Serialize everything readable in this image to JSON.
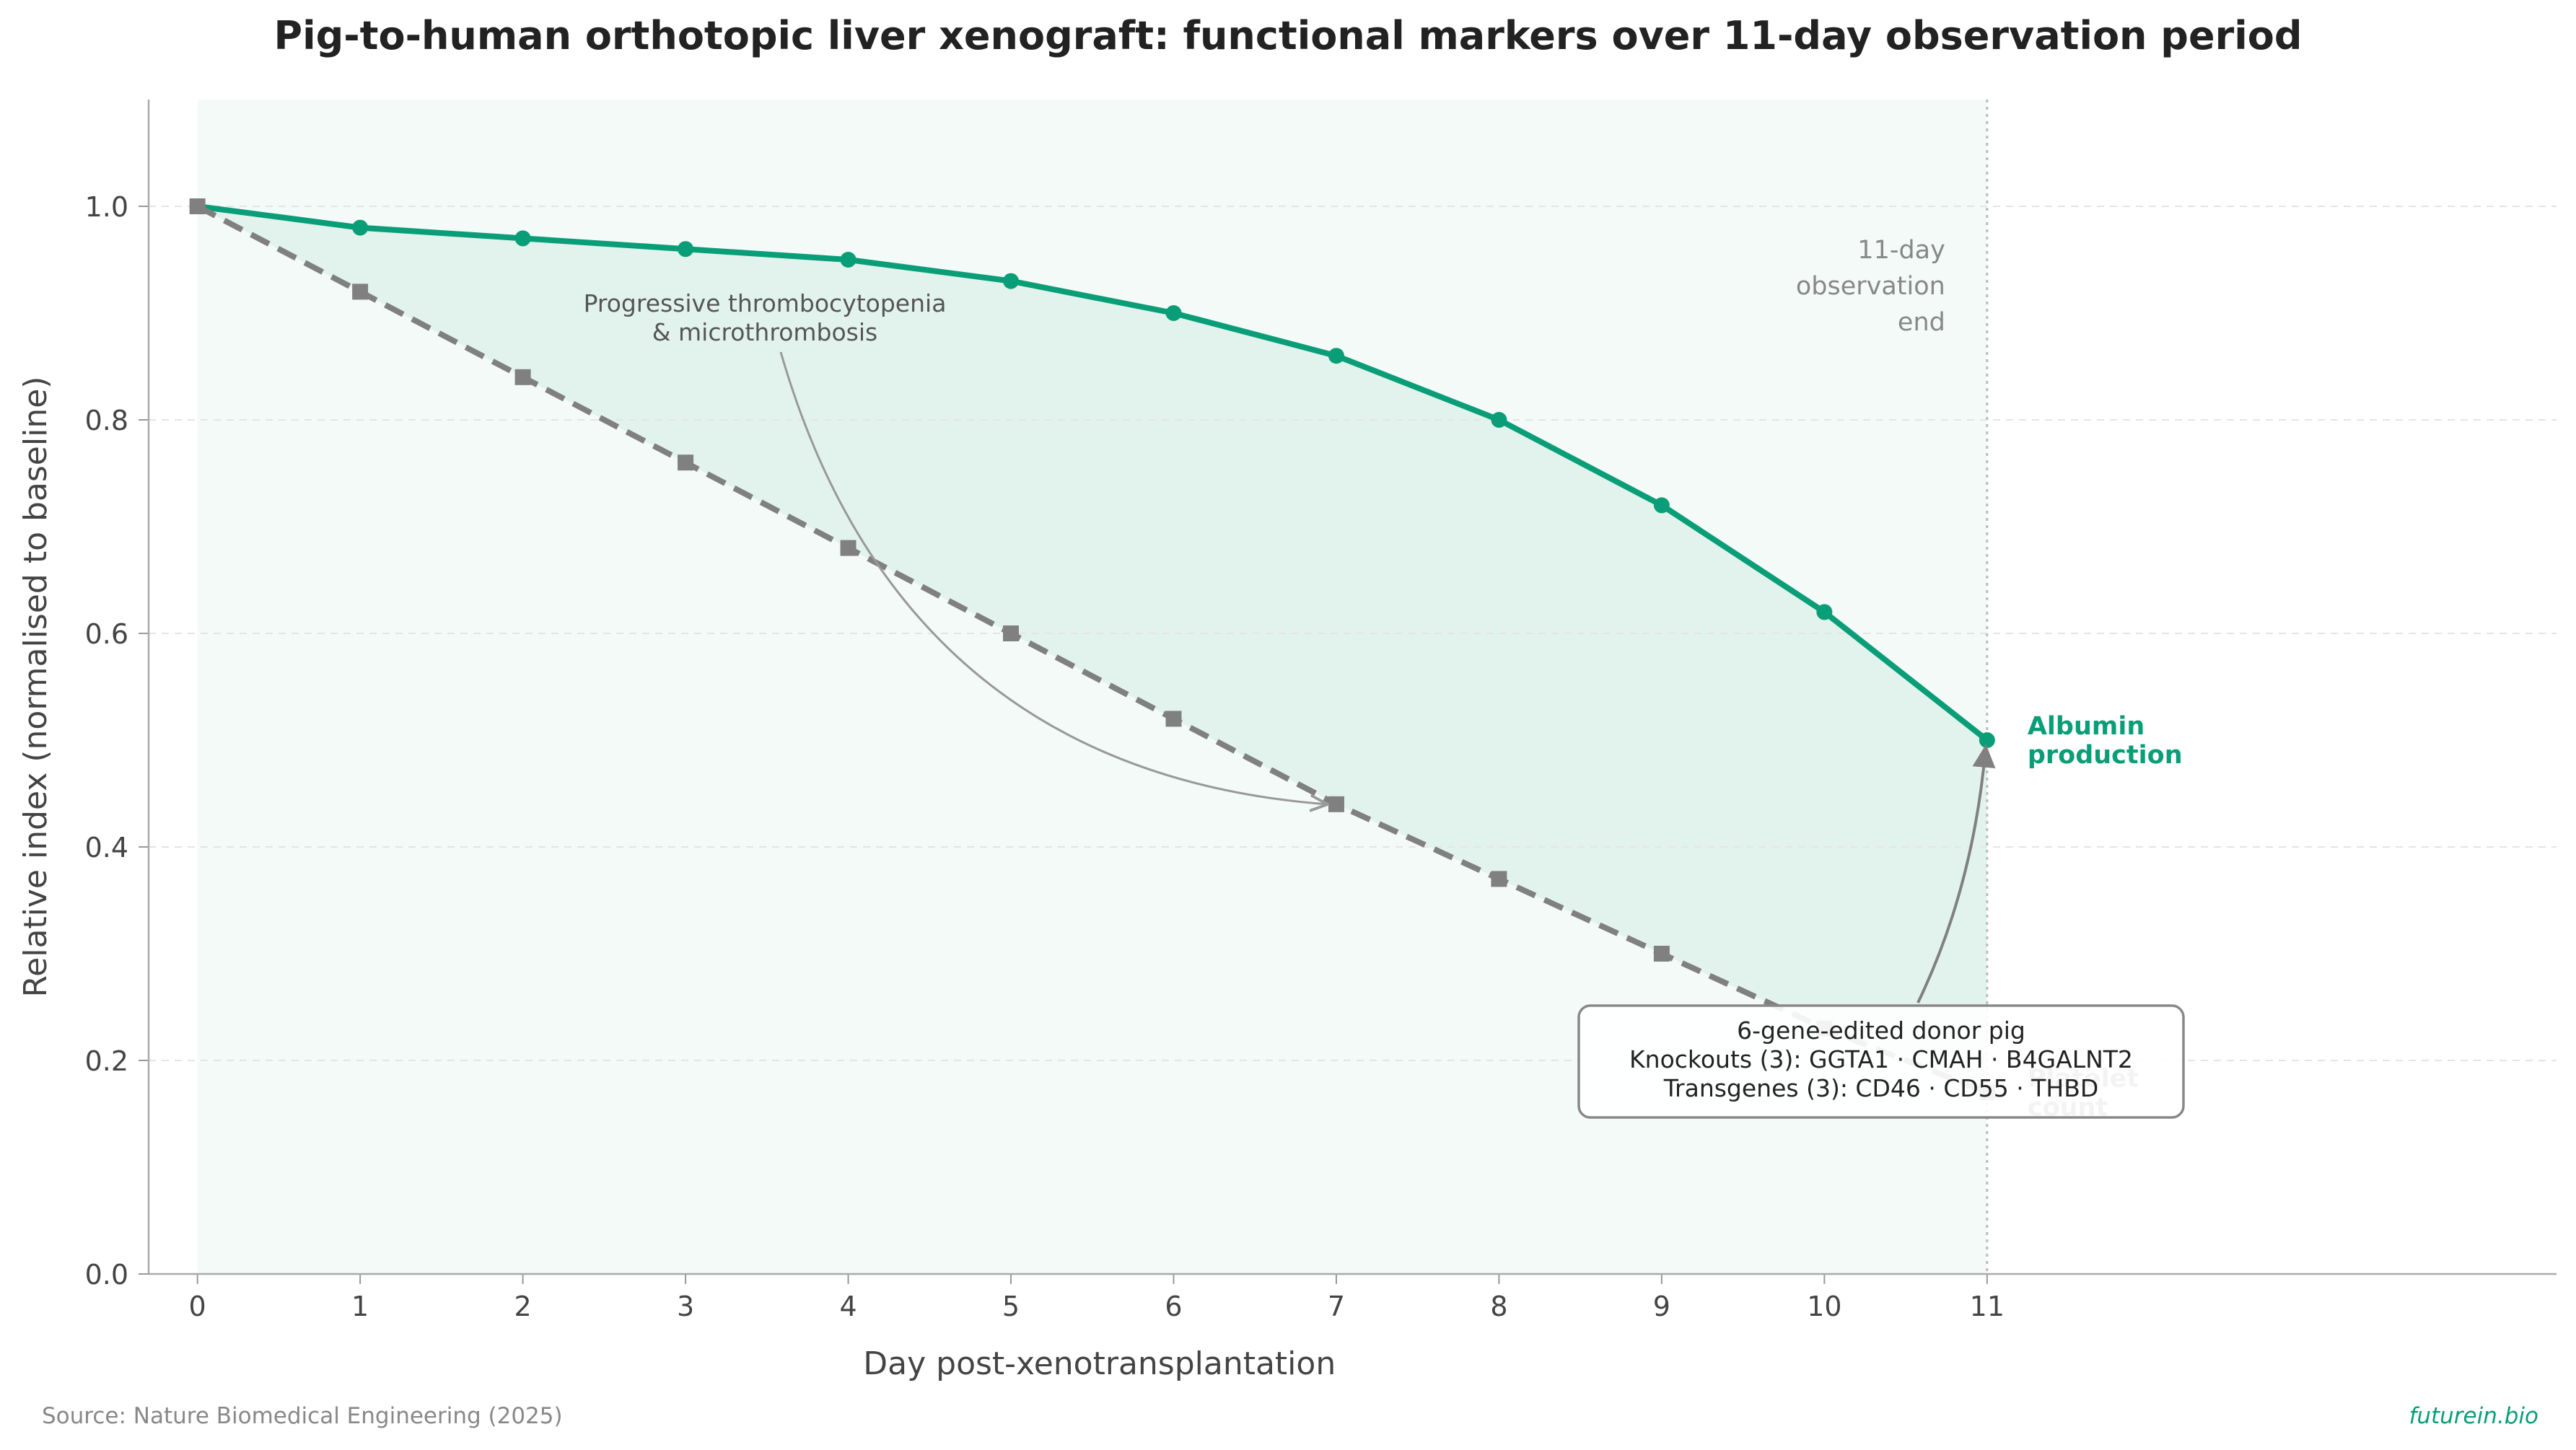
{
  "chart_data": {
    "type": "line",
    "title": "Pig-to-human orthotopic liver xenograft: functional markers over 11-day observation period",
    "xlabel": "Day post-xenotransplantation",
    "ylabel": "Relative index (normalised to baseline)",
    "x": [
      0,
      1,
      2,
      3,
      4,
      5,
      6,
      7,
      8,
      9,
      10,
      11
    ],
    "xlim": [
      -0.3,
      14.5
    ],
    "ylim": [
      0,
      1.1
    ],
    "x_ticks": [
      "0",
      "1",
      "2",
      "3",
      "4",
      "5",
      "6",
      "7",
      "8",
      "9",
      "10",
      "11"
    ],
    "y_ticks": [
      "0.0",
      "0.2",
      "0.4",
      "0.6",
      "0.8",
      "1.0"
    ],
    "grid": "horizontal dashed",
    "series": [
      {
        "name": "Albumin production",
        "label_lines": [
          "Albumin",
          "production"
        ],
        "color": "#0a9e78",
        "style": "solid",
        "marker": "circle",
        "values": [
          1.0,
          0.98,
          0.97,
          0.96,
          0.95,
          0.93,
          0.9,
          0.86,
          0.8,
          0.72,
          0.62,
          0.5
        ]
      },
      {
        "name": "Platelet count",
        "label_lines": [
          "Platelet",
          "count"
        ],
        "color": "#808080",
        "style": "dashed",
        "marker": "square",
        "values": [
          1.0,
          0.92,
          0.84,
          0.76,
          0.68,
          0.6,
          0.52,
          0.44,
          0.37,
          0.3,
          0.23,
          0.17
        ]
      }
    ],
    "annotations": {
      "observation_end": [
        "11-day",
        "observation",
        "end"
      ],
      "thrombocytopenia": [
        "Progressive thrombocytopenia",
        "& microthrombosis"
      ],
      "donor_box": [
        "6-gene-edited donor pig",
        "Knockouts (3):  GGTA1 · CMAH · B4GALNT2",
        "Transgenes (3): CD46 · CD55 · THBD"
      ]
    },
    "source": "Source: Nature Biomedical Engineering (2025)",
    "brand": "futurein.bio"
  }
}
